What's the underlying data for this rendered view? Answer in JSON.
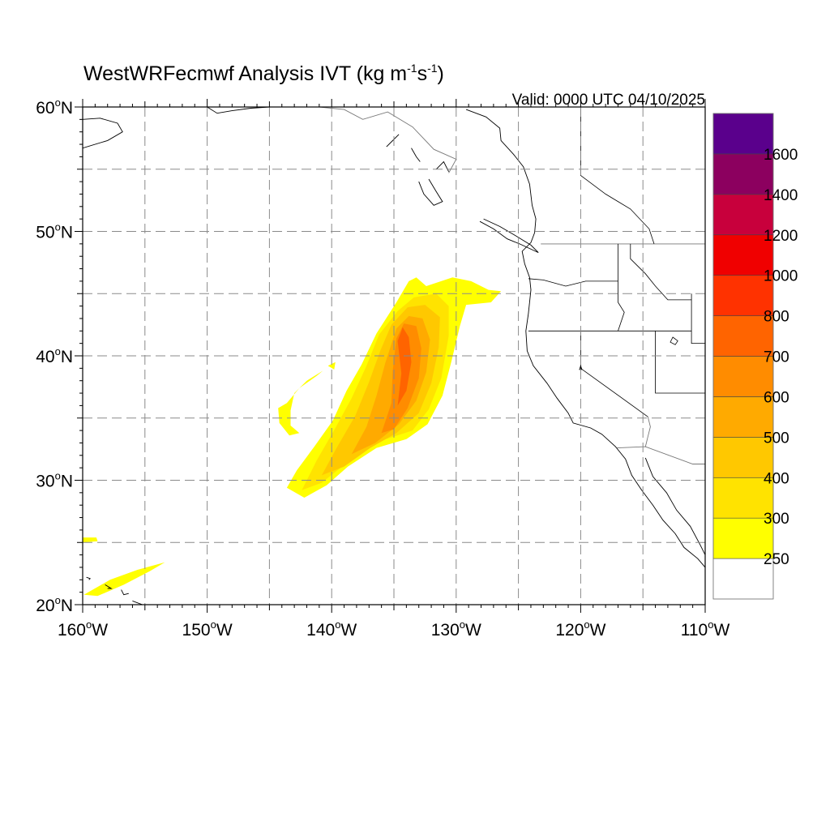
{
  "title": {
    "main": "WestWRFecmwf Analysis IVT (kg m",
    "sup1": "-1",
    "mid": "s",
    "sup2": "-1",
    "close": ")"
  },
  "valid": "Valid: 0000 UTC 04/10/2025",
  "lat_labels": [
    {
      "deg": 60,
      "num": "60",
      "o": "o",
      "h": "N"
    },
    {
      "deg": 50,
      "num": "50",
      "o": "o",
      "h": "N"
    },
    {
      "deg": 40,
      "num": "40",
      "o": "o",
      "h": "N"
    },
    {
      "deg": 30,
      "num": "30",
      "o": "o",
      "h": "N"
    },
    {
      "deg": 20,
      "num": "20",
      "o": "o",
      "h": "N"
    }
  ],
  "lon_labels": [
    {
      "deg": -160,
      "num": "160",
      "o": "o",
      "h": "W"
    },
    {
      "deg": -150,
      "num": "150",
      "o": "o",
      "h": "W"
    },
    {
      "deg": -140,
      "num": "140",
      "o": "o",
      "h": "W"
    },
    {
      "deg": -130,
      "num": "130",
      "o": "o",
      "h": "W"
    },
    {
      "deg": -120,
      "num": "120",
      "o": "o",
      "h": "W"
    },
    {
      "deg": -110,
      "num": "110",
      "o": "o",
      "h": "W"
    }
  ],
  "map_extent": {
    "lon": [
      -160,
      -110
    ],
    "lat": [
      20,
      60
    ]
  },
  "grid_lons": [
    -155,
    -150,
    -145,
    -140,
    -135,
    -130,
    -125,
    -120,
    -115
  ],
  "grid_lats": [
    55,
    50,
    45,
    40,
    35,
    30,
    25
  ],
  "colorbar": {
    "colors": [
      "#ffffff",
      "#ffff00",
      "#ffe300",
      "#ffc800",
      "#ffaa00",
      "#ff8c00",
      "#ff6400",
      "#ff3200",
      "#f00000",
      "#c8003c",
      "#8c005f",
      "#5a008c"
    ],
    "labels": [
      "250",
      "300",
      "400",
      "500",
      "600",
      "700",
      "800",
      "1000",
      "1200",
      "1400",
      "1600"
    ]
  },
  "ivt_shades": [
    {
      "color": "#ffff00",
      "pts": [
        [
          -143.6,
          29.4
        ],
        [
          -142.8,
          30.8
        ],
        [
          -141.4,
          32.7
        ],
        [
          -139.9,
          34.8
        ],
        [
          -138.8,
          37.2
        ],
        [
          -137.6,
          39.3
        ],
        [
          -136.4,
          41.8
        ],
        [
          -134.8,
          44.3
        ],
        [
          -133.8,
          46.0
        ],
        [
          -133.2,
          46.3
        ],
        [
          -132.4,
          45.6
        ],
        [
          -130.3,
          46.3
        ],
        [
          -128.8,
          46.0
        ],
        [
          -127.4,
          45.3
        ],
        [
          -126.4,
          45.2
        ],
        [
          -127.2,
          44.3
        ],
        [
          -129.2,
          44.1
        ],
        [
          -129.7,
          42.4
        ],
        [
          -130.4,
          39.5
        ],
        [
          -131.1,
          36.8
        ],
        [
          -132.3,
          34.5
        ],
        [
          -134.0,
          33.3
        ],
        [
          -136.4,
          32.6
        ],
        [
          -138.7,
          31.1
        ],
        [
          -140.4,
          29.6
        ],
        [
          -142.2,
          28.6
        ]
      ]
    },
    {
      "color": "#ffe300",
      "pts": [
        [
          -142.4,
          29.2
        ],
        [
          -141.2,
          31.6
        ],
        [
          -139.7,
          34.2
        ],
        [
          -138.4,
          36.6
        ],
        [
          -137.2,
          39.2
        ],
        [
          -136.2,
          41.7
        ],
        [
          -134.7,
          43.6
        ],
        [
          -133.4,
          44.7
        ],
        [
          -131.6,
          45.0
        ],
        [
          -130.6,
          44.0
        ],
        [
          -130.6,
          41.6
        ],
        [
          -131.2,
          38.2
        ],
        [
          -132.2,
          35.7
        ],
        [
          -133.5,
          34.0
        ],
        [
          -136.6,
          33.0
        ],
        [
          -138.9,
          31.3
        ],
        [
          -140.8,
          29.8
        ]
      ]
    },
    {
      "color": "#ffc800",
      "pts": [
        [
          -140.8,
          30.4
        ],
        [
          -139.6,
          32.6
        ],
        [
          -138.1,
          35.2
        ],
        [
          -137.0,
          37.9
        ],
        [
          -136.1,
          40.4
        ],
        [
          -135.2,
          42.5
        ],
        [
          -133.9,
          43.9
        ],
        [
          -132.5,
          44.1
        ],
        [
          -131.3,
          43.1
        ],
        [
          -131.4,
          40.7
        ],
        [
          -132.0,
          37.8
        ],
        [
          -133.0,
          35.4
        ],
        [
          -134.8,
          33.8
        ],
        [
          -136.9,
          32.6
        ],
        [
          -139.0,
          31.1
        ]
      ]
    },
    {
      "color": "#ffaa00",
      "pts": [
        [
          -138.4,
          32.1
        ],
        [
          -137.2,
          34.3
        ],
        [
          -136.4,
          36.8
        ],
        [
          -135.7,
          39.4
        ],
        [
          -134.8,
          42.2
        ],
        [
          -133.8,
          43.2
        ],
        [
          -132.7,
          43.0
        ],
        [
          -132.1,
          41.3
        ],
        [
          -132.4,
          38.7
        ],
        [
          -133.2,
          36.4
        ],
        [
          -134.6,
          34.5
        ],
        [
          -136.5,
          33.0
        ]
      ]
    },
    {
      "color": "#ff8c00",
      "pts": [
        [
          -136.0,
          33.8
        ],
        [
          -135.2,
          36.2
        ],
        [
          -135.1,
          38.8
        ],
        [
          -134.8,
          41.4
        ],
        [
          -134.2,
          42.6
        ],
        [
          -133.2,
          42.4
        ],
        [
          -132.8,
          40.6
        ],
        [
          -133.0,
          38.2
        ],
        [
          -133.9,
          35.8
        ],
        [
          -135.0,
          34.1
        ]
      ]
    },
    {
      "color": "#ff6400",
      "pts": [
        [
          -134.7,
          36.0
        ],
        [
          -134.4,
          38.6
        ],
        [
          -134.7,
          41.2
        ],
        [
          -134.3,
          42.3
        ],
        [
          -133.8,
          41.5
        ],
        [
          -133.6,
          39.5
        ],
        [
          -134.0,
          37.2
        ]
      ]
    },
    {
      "color": "#ffff00",
      "pts": [
        [
          -143.6,
          36.2
        ],
        [
          -142.6,
          37.4
        ],
        [
          -141.2,
          38.4
        ],
        [
          -140.7,
          38.8
        ],
        [
          -142.0,
          38.0
        ],
        [
          -143.0,
          37.0
        ],
        [
          -143.3,
          35.6
        ],
        [
          -143.3,
          34.4
        ],
        [
          -142.6,
          33.8
        ],
        [
          -143.4,
          33.6
        ],
        [
          -144.2,
          34.6
        ],
        [
          -144.3,
          35.8
        ]
      ]
    },
    {
      "color": "#ffff00",
      "pts": [
        [
          -140.3,
          39.2
        ],
        [
          -139.7,
          39.5
        ],
        [
          -139.8,
          38.9
        ]
      ]
    },
    {
      "color": "#ffff00",
      "pts": [
        [
          -159.9,
          20.8
        ],
        [
          -157.8,
          22.0
        ],
        [
          -155.6,
          22.8
        ],
        [
          -153.4,
          23.4
        ],
        [
          -154.6,
          22.7
        ],
        [
          -156.7,
          21.6
        ],
        [
          -158.8,
          20.7
        ]
      ]
    },
    {
      "color": "#ffff00",
      "pts": [
        [
          -160.0,
          25.0
        ],
        [
          -158.8,
          25.1
        ],
        [
          -158.9,
          25.4
        ],
        [
          -160.0,
          25.4
        ]
      ]
    }
  ],
  "coastlines": [
    [
      [
        -129.2,
        59.8
      ],
      [
        -127.6,
        59.2
      ],
      [
        -126.5,
        58.3
      ],
      [
        -126.4,
        57.3
      ],
      [
        -125.4,
        56.2
      ],
      [
        -124.6,
        55.2
      ],
      [
        -124.1,
        53.8
      ],
      [
        -123.9,
        52.1
      ],
      [
        -123.6,
        51.0
      ],
      [
        -123.7,
        49.9
      ],
      [
        -124.0,
        49.1
      ],
      [
        -124.7,
        48.4
      ],
      [
        -124.5,
        47.4
      ],
      [
        -124.1,
        46.3
      ],
      [
        -124.0,
        45.3
      ],
      [
        -124.2,
        43.4
      ],
      [
        -124.4,
        42.0
      ],
      [
        -124.3,
        40.4
      ],
      [
        -123.8,
        39.2
      ],
      [
        -122.7,
        37.8
      ],
      [
        -121.9,
        36.6
      ],
      [
        -121.0,
        35.4
      ],
      [
        -120.6,
        34.6
      ],
      [
        -119.2,
        34.2
      ],
      [
        -118.3,
        33.7
      ],
      [
        -117.2,
        32.7
      ],
      [
        -116.4,
        31.7
      ],
      [
        -115.9,
        30.4
      ],
      [
        -115.1,
        29.2
      ],
      [
        -114.2,
        28.0
      ],
      [
        -113.4,
        26.8
      ],
      [
        -112.4,
        25.7
      ],
      [
        -111.7,
        24.6
      ],
      [
        -110.6,
        23.7
      ],
      [
        -110.0,
        23.0
      ]
    ],
    [
      [
        -114.8,
        31.8
      ],
      [
        -114.2,
        30.3
      ],
      [
        -113.1,
        29.0
      ],
      [
        -112.3,
        27.6
      ],
      [
        -111.2,
        26.3
      ],
      [
        -110.4,
        24.8
      ],
      [
        -110.0,
        24.0
      ]
    ],
    [
      [
        -160.0,
        56.7
      ],
      [
        -158.0,
        57.3
      ],
      [
        -156.8,
        58.0
      ],
      [
        -157.2,
        58.7
      ],
      [
        -158.6,
        59.1
      ],
      [
        -160.0,
        59.0
      ]
    ],
    [
      [
        -150.0,
        60.0
      ],
      [
        -149.2,
        59.5
      ],
      [
        -148.0,
        59.7
      ],
      [
        -146.5,
        59.9
      ],
      [
        -145.0,
        60.0
      ]
    ],
    [
      [
        -134.6,
        57.8
      ],
      [
        -135.2,
        57.2
      ],
      [
        -135.6,
        56.8
      ]
    ],
    [
      [
        -133.6,
        56.7
      ],
      [
        -133.2,
        56.0
      ],
      [
        -132.9,
        55.6
      ]
    ],
    [
      [
        -131.6,
        55.0
      ],
      [
        -131.0,
        55.6
      ],
      [
        -130.6,
        54.8
      ]
    ],
    [
      [
        -132.2,
        54.2
      ],
      [
        -131.6,
        53.2
      ],
      [
        -131.1,
        52.4
      ],
      [
        -131.8,
        52.1
      ],
      [
        -132.6,
        53.0
      ],
      [
        -133.0,
        54.0
      ]
    ],
    [
      [
        -128.1,
        50.8
      ],
      [
        -127.0,
        50.2
      ],
      [
        -125.9,
        49.4
      ],
      [
        -124.9,
        49.0
      ],
      [
        -123.4,
        48.3
      ],
      [
        -124.0,
        48.9
      ],
      [
        -125.3,
        49.7
      ],
      [
        -126.5,
        50.4
      ],
      [
        -127.8,
        51.0
      ]
    ],
    [
      [
        -159.7,
        22.2
      ],
      [
        -159.4,
        22.1
      ],
      [
        -159.5,
        22.0
      ]
    ],
    [
      [
        -158.2,
        21.6
      ],
      [
        -157.7,
        21.3
      ],
      [
        -158.0,
        21.3
      ]
    ],
    [
      [
        -156.9,
        21.2
      ],
      [
        -156.7,
        20.8
      ],
      [
        -156.3,
        20.9
      ]
    ],
    [
      [
        -156.0,
        20.3
      ],
      [
        -155.2,
        20.0
      ],
      [
        -155.7,
        19.8
      ]
    ]
  ],
  "borders": [
    [
      [
        -141.0,
        60.0
      ],
      [
        -139.0,
        59.8
      ],
      [
        -137.5,
        59.0
      ],
      [
        -135.5,
        59.6
      ],
      [
        -133.5,
        58.4
      ],
      [
        -131.8,
        56.6
      ],
      [
        -130.0,
        55.8
      ],
      [
        -130.6,
        54.7
      ]
    ],
    [
      [
        -123.2,
        49.0
      ],
      [
        -110.0,
        49.0
      ]
    ],
    [
      [
        -117.1,
        32.6
      ],
      [
        -114.8,
        32.7
      ],
      [
        -111.0,
        31.3
      ],
      [
        -110.0,
        31.3
      ]
    ],
    [
      [
        -114.8,
        32.7
      ],
      [
        -114.6,
        33.5
      ],
      [
        -114.4,
        34.3
      ],
      [
        -114.6,
        35.1
      ]
    ]
  ],
  "states": [
    [
      [
        -120.0,
        60.0
      ],
      [
        -120.0,
        54.5
      ],
      [
        -118.0,
        53.0
      ],
      [
        -116.0,
        51.8
      ],
      [
        -114.5,
        50.2
      ],
      [
        -114.1,
        49.0
      ]
    ],
    [
      [
        -124.2,
        46.2
      ],
      [
        -123.0,
        46.1
      ],
      [
        -121.2,
        45.6
      ],
      [
        -119.6,
        46.0
      ],
      [
        -117.0,
        46.0
      ]
    ],
    [
      [
        -117.0,
        49.0
      ],
      [
        -117.0,
        44.3
      ],
      [
        -116.5,
        43.5
      ],
      [
        -117.0,
        42.0
      ]
    ],
    [
      [
        -116.0,
        49.0
      ],
      [
        -116.0,
        47.8
      ],
      [
        -114.8,
        46.6
      ],
      [
        -114.0,
        45.6
      ],
      [
        -113.0,
        44.5
      ],
      [
        -111.1,
        44.5
      ]
    ],
    [
      [
        -124.2,
        42.0
      ],
      [
        -111.1,
        42.0
      ]
    ],
    [
      [
        -120.0,
        42.0
      ],
      [
        -120.0,
        39.0
      ],
      [
        -114.6,
        35.1
      ]
    ],
    [
      [
        -114.0,
        42.0
      ],
      [
        -114.0,
        37.0
      ],
      [
        -110.0,
        37.0
      ]
    ],
    [
      [
        -111.1,
        45.0
      ],
      [
        -111.1,
        41.0
      ],
      [
        -110.0,
        41.0
      ]
    ]
  ],
  "lakes": [
    [
      [
        -112.6,
        41.5
      ],
      [
        -112.2,
        41.2
      ],
      [
        -112.4,
        40.9
      ],
      [
        -112.8,
        41.1
      ]
    ],
    [
      [
        -120.0,
        39.2
      ],
      [
        -119.9,
        38.9
      ],
      [
        -120.1,
        38.9
      ]
    ]
  ]
}
